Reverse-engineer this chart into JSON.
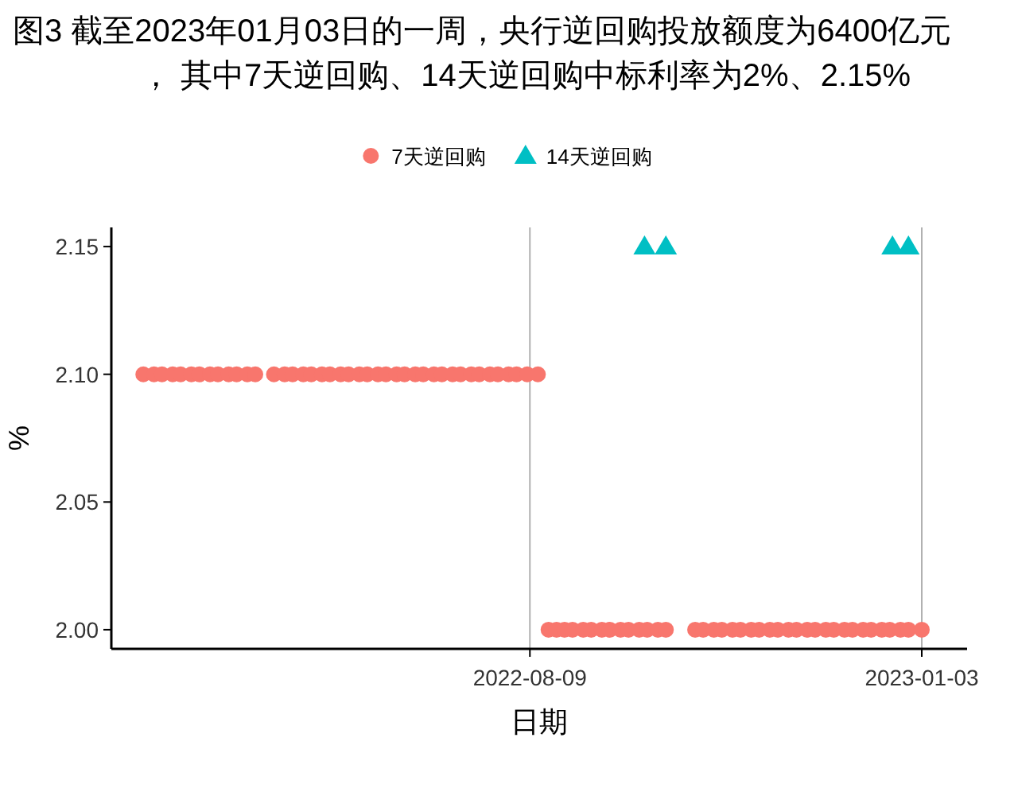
{
  "chart_data": {
    "type": "scatter",
    "title": "图3  截至2023年01月03日的一周，央行逆回购投放额度为6400亿元， 其中7天逆回购、14天逆回购中标利率为2%、2.15%",
    "xlabel": "日期",
    "ylabel": "%",
    "series": [
      {
        "name": "7天逆回购",
        "color": "#f8766d",
        "marker": "circle",
        "x": [
          "2022-03-17",
          "2022-03-21",
          "2022-03-24",
          "2022-03-28",
          "2022-03-31",
          "2022-04-04",
          "2022-04-07",
          "2022-04-11",
          "2022-04-14",
          "2022-04-18",
          "2022-04-21",
          "2022-04-25",
          "2022-04-28",
          "2022-05-05",
          "2022-05-09",
          "2022-05-12",
          "2022-05-16",
          "2022-05-19",
          "2022-05-23",
          "2022-05-26",
          "2022-05-30",
          "2022-06-02",
          "2022-06-06",
          "2022-06-09",
          "2022-06-13",
          "2022-06-16",
          "2022-06-20",
          "2022-06-23",
          "2022-06-27",
          "2022-06-30",
          "2022-07-04",
          "2022-07-07",
          "2022-07-11",
          "2022-07-14",
          "2022-07-18",
          "2022-07-21",
          "2022-07-25",
          "2022-07-28",
          "2022-08-01",
          "2022-08-04",
          "2022-08-08",
          "2022-08-12",
          "2022-08-16",
          "2022-08-19",
          "2022-08-22",
          "2022-08-25",
          "2022-08-29",
          "2022-09-01",
          "2022-09-05",
          "2022-09-08",
          "2022-09-12",
          "2022-09-15",
          "2022-09-19",
          "2022-09-22",
          "2022-09-26",
          "2022-09-29",
          "2022-10-10",
          "2022-10-13",
          "2022-10-17",
          "2022-10-20",
          "2022-10-24",
          "2022-10-27",
          "2022-10-31",
          "2022-11-03",
          "2022-11-07",
          "2022-11-10",
          "2022-11-14",
          "2022-11-17",
          "2022-11-21",
          "2022-11-24",
          "2022-11-28",
          "2022-12-01",
          "2022-12-05",
          "2022-12-08",
          "2022-12-12",
          "2022-12-15",
          "2022-12-19",
          "2022-12-22",
          "2022-12-26",
          "2022-12-29",
          "2023-01-03"
        ],
        "values": [
          2.1,
          2.1,
          2.1,
          2.1,
          2.1,
          2.1,
          2.1,
          2.1,
          2.1,
          2.1,
          2.1,
          2.1,
          2.1,
          2.1,
          2.1,
          2.1,
          2.1,
          2.1,
          2.1,
          2.1,
          2.1,
          2.1,
          2.1,
          2.1,
          2.1,
          2.1,
          2.1,
          2.1,
          2.1,
          2.1,
          2.1,
          2.1,
          2.1,
          2.1,
          2.1,
          2.1,
          2.1,
          2.1,
          2.1,
          2.1,
          2.1,
          2.1,
          2.0,
          2.0,
          2.0,
          2.0,
          2.0,
          2.0,
          2.0,
          2.0,
          2.0,
          2.0,
          2.0,
          2.0,
          2.0,
          2.0,
          2.0,
          2.0,
          2.0,
          2.0,
          2.0,
          2.0,
          2.0,
          2.0,
          2.0,
          2.0,
          2.0,
          2.0,
          2.0,
          2.0,
          2.0,
          2.0,
          2.0,
          2.0,
          2.0,
          2.0,
          2.0,
          2.0,
          2.0,
          2.0,
          2.0
        ]
      },
      {
        "name": "14天逆回购",
        "color": "#00bfc4",
        "marker": "triangle",
        "x": [
          "2022-09-21",
          "2022-09-29",
          "2022-12-23",
          "2022-12-29"
        ],
        "values": [
          2.15,
          2.15,
          2.15,
          2.15
        ]
      }
    ],
    "xlim": [
      "2022-03-05",
      "2023-01-20"
    ],
    "xticks": [
      "2022-08-09",
      "2023-01-03"
    ],
    "ylim": [
      1.9925,
      2.1575
    ],
    "yticks": [
      {
        "value": 2.0,
        "label": "2.00"
      },
      2.05,
      {
        "value": 2.1,
        "label": "2.10"
      },
      2.15
    ],
    "grid": "x",
    "legend": "top"
  }
}
